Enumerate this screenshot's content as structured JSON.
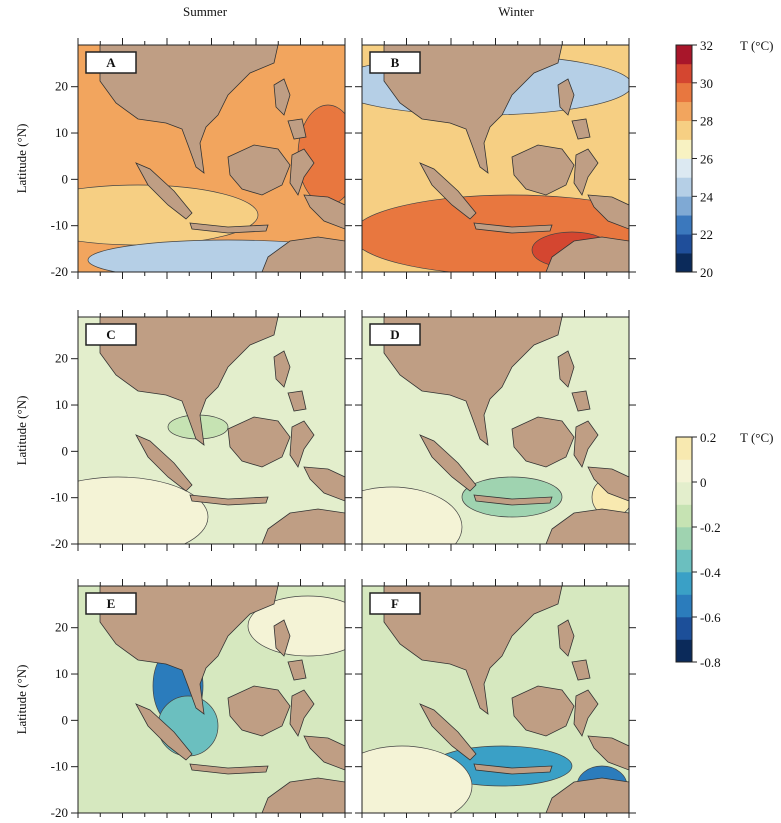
{
  "columns": [
    "Summer",
    "Winter"
  ],
  "panels": [
    {
      "label": "A"
    },
    {
      "label": "B"
    },
    {
      "label": "C"
    },
    {
      "label": "D"
    },
    {
      "label": "E"
    },
    {
      "label": "F"
    }
  ],
  "y_axis": {
    "label": "Latitude (°N)",
    "ylim": [
      -20,
      29
    ],
    "yticks": [
      20,
      10,
      0,
      -10,
      -20
    ]
  },
  "colorbars": [
    {
      "unit": "T (°C)",
      "lim": [
        20,
        32
      ],
      "ticks": [
        32,
        30,
        28,
        26,
        24,
        22,
        20
      ],
      "colors": [
        "#0b2a5a",
        "#1f4e9a",
        "#3b78bd",
        "#7fa9d4",
        "#b5cfe6",
        "#dce9f2",
        "#f8f2c2",
        "#f6cf83",
        "#f2a55e",
        "#e8773f",
        "#d44630",
        "#a8162a"
      ]
    },
    {
      "unit": "T (°C)",
      "lim": [
        -0.8,
        0.2
      ],
      "ticks": [
        0.2,
        0,
        -0.2,
        -0.4,
        -0.6,
        -0.8
      ],
      "colors": [
        "#0b2a5a",
        "#1c4f99",
        "#2b7cbc",
        "#3aa0c6",
        "#6bbfbf",
        "#9fd3b0",
        "#c6e3b3",
        "#e3eecc",
        "#f4f3d6",
        "#f8e9b0"
      ]
    }
  ]
}
